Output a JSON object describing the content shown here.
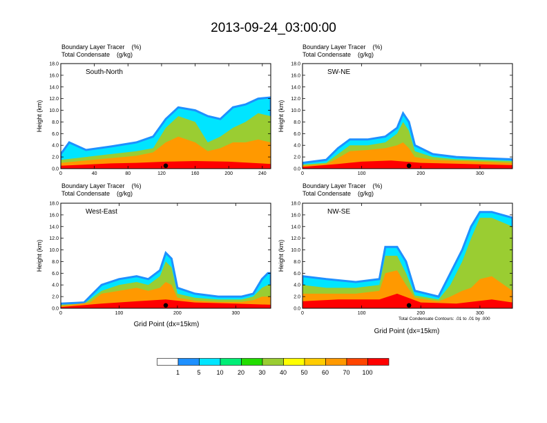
{
  "title": "2013-09-24_03:00:00",
  "panel_header": {
    "line1": "Boundary Layer Tracer    (%)",
    "line2": "Total Condensate    (g/kg)"
  },
  "xlabel": "Grid Point (dx=15km)",
  "contour_note": "Total Condensate Contours: .01 to .01 by .000",
  "colorbar": {
    "labels": [
      "1",
      "5",
      "10",
      "20",
      "30",
      "40",
      "50",
      "60",
      "70",
      "100"
    ],
    "colors": [
      "#ffffff",
      "#1e90ff",
      "#00e5ff",
      "#00ee76",
      "#22dd00",
      "#9acd32",
      "#ffff00",
      "#ffcc00",
      "#ff9900",
      "#ff4500",
      "#ff0000"
    ]
  },
  "chart_data": [
    {
      "type": "area",
      "panel_label": "South-North",
      "ylabel": "Height (km)",
      "ylim": [
        0,
        18
      ],
      "yticks": [
        "0.0",
        "2.0",
        "4.0",
        "6.0",
        "8.0",
        "10.0",
        "12.0",
        "14.0",
        "16.0",
        "18.0"
      ],
      "xlim": [
        0,
        250
      ],
      "xticks": [
        0,
        40,
        80,
        120,
        160,
        200,
        240
      ],
      "marker_x": 125,
      "layers": [
        {
          "level": "1",
          "top": [
            [
              0,
              2.5
            ],
            [
              10,
              4.5
            ],
            [
              30,
              3.2
            ],
            [
              60,
              3.8
            ],
            [
              90,
              4.5
            ],
            [
              110,
              5.5
            ],
            [
              125,
              8.5
            ],
            [
              140,
              10.5
            ],
            [
              160,
              10.0
            ],
            [
              175,
              9.0
            ],
            [
              190,
              8.5
            ],
            [
              205,
              10.5
            ],
            [
              220,
              11.0
            ],
            [
              235,
              12.0
            ],
            [
              250,
              12.2
            ]
          ]
        },
        {
          "level": "20",
          "top": [
            [
              0,
              1.5
            ],
            [
              30,
              2.0
            ],
            [
              60,
              2.5
            ],
            [
              90,
              3.0
            ],
            [
              110,
              3.5
            ],
            [
              125,
              7.0
            ],
            [
              140,
              9.0
            ],
            [
              160,
              8.0
            ],
            [
              175,
              4.5
            ],
            [
              190,
              5.5
            ],
            [
              205,
              7.0
            ],
            [
              220,
              8.0
            ],
            [
              235,
              9.5
            ],
            [
              250,
              9.0
            ]
          ]
        },
        {
          "level": "60",
          "top": [
            [
              0,
              1.0
            ],
            [
              30,
              1.4
            ],
            [
              60,
              1.8
            ],
            [
              90,
              2.2
            ],
            [
              110,
              2.8
            ],
            [
              125,
              4.5
            ],
            [
              140,
              5.5
            ],
            [
              160,
              4.5
            ],
            [
              175,
              3.0
            ],
            [
              190,
              3.5
            ],
            [
              205,
              4.5
            ],
            [
              220,
              4.5
            ],
            [
              235,
              5.0
            ],
            [
              250,
              4.5
            ]
          ]
        },
        {
          "level": "100",
          "top": [
            [
              0,
              0.5
            ],
            [
              30,
              0.7
            ],
            [
              60,
              0.9
            ],
            [
              90,
              1.0
            ],
            [
              125,
              1.2
            ],
            [
              160,
              1.3
            ],
            [
              200,
              1.2
            ],
            [
              250,
              0.8
            ]
          ]
        }
      ]
    },
    {
      "type": "area",
      "panel_label": "SW-NE",
      "ylabel": "Height (km)",
      "ylim": [
        0,
        18
      ],
      "yticks": [
        "0.0",
        "2.0",
        "4.0",
        "6.0",
        "8.0",
        "10.0",
        "12.0",
        "14.0",
        "16.0",
        "18.0"
      ],
      "xlim": [
        0,
        355
      ],
      "xticks": [
        0,
        100,
        200,
        300
      ],
      "marker_x": 180,
      "layers": [
        {
          "level": "1",
          "top": [
            [
              0,
              1.0
            ],
            [
              40,
              1.5
            ],
            [
              60,
              3.5
            ],
            [
              80,
              5.0
            ],
            [
              110,
              5.0
            ],
            [
              140,
              5.5
            ],
            [
              160,
              7.0
            ],
            [
              170,
              9.5
            ],
            [
              180,
              8.0
            ],
            [
              190,
              4.0
            ],
            [
              220,
              2.5
            ],
            [
              260,
              2.0
            ],
            [
              300,
              1.8
            ],
            [
              355,
              1.6
            ]
          ]
        },
        {
          "level": "20",
          "top": [
            [
              0,
              0.7
            ],
            [
              40,
              1.0
            ],
            [
              60,
              2.5
            ],
            [
              80,
              4.0
            ],
            [
              110,
              4.0
            ],
            [
              140,
              4.5
            ],
            [
              160,
              6.0
            ],
            [
              170,
              8.0
            ],
            [
              180,
              6.5
            ],
            [
              190,
              3.0
            ],
            [
              220,
              2.0
            ],
            [
              260,
              1.6
            ],
            [
              355,
              1.3
            ]
          ]
        },
        {
          "level": "60",
          "top": [
            [
              0,
              0.5
            ],
            [
              40,
              0.8
            ],
            [
              60,
              1.8
            ],
            [
              80,
              3.0
            ],
            [
              110,
              3.2
            ],
            [
              140,
              3.5
            ],
            [
              160,
              4.0
            ],
            [
              170,
              4.5
            ],
            [
              180,
              3.5
            ],
            [
              190,
              2.0
            ],
            [
              220,
              1.5
            ],
            [
              355,
              1.0
            ]
          ]
        },
        {
          "level": "100",
          "top": [
            [
              0,
              0.3
            ],
            [
              60,
              0.8
            ],
            [
              100,
              1.2
            ],
            [
              150,
              1.4
            ],
            [
              200,
              1.0
            ],
            [
              355,
              0.6
            ]
          ]
        }
      ]
    },
    {
      "type": "area",
      "panel_label": "West-East",
      "ylabel": "Height (km)",
      "ylim": [
        0,
        18
      ],
      "yticks": [
        "0.0",
        "2.0",
        "4.0",
        "6.0",
        "8.0",
        "10.0",
        "12.0",
        "14.0",
        "16.0",
        "18.0"
      ],
      "xlim": [
        0,
        360
      ],
      "xticks": [
        0,
        100,
        200,
        300
      ],
      "marker_x": 180,
      "layers": [
        {
          "level": "1",
          "top": [
            [
              0,
              0.8
            ],
            [
              40,
              1.0
            ],
            [
              50,
              2.0
            ],
            [
              70,
              4.0
            ],
            [
              100,
              5.0
            ],
            [
              130,
              5.5
            ],
            [
              150,
              5.0
            ],
            [
              170,
              6.5
            ],
            [
              180,
              9.5
            ],
            [
              190,
              8.5
            ],
            [
              200,
              3.5
            ],
            [
              230,
              2.5
            ],
            [
              270,
              2.0
            ],
            [
              310,
              2.0
            ],
            [
              330,
              2.5
            ],
            [
              345,
              5.0
            ],
            [
              355,
              6.0
            ],
            [
              360,
              6.0
            ]
          ]
        },
        {
          "level": "20",
          "top": [
            [
              0,
              0.6
            ],
            [
              40,
              0.8
            ],
            [
              50,
              1.5
            ],
            [
              70,
              3.0
            ],
            [
              100,
              4.0
            ],
            [
              130,
              4.5
            ],
            [
              150,
              4.0
            ],
            [
              170,
              5.5
            ],
            [
              180,
              8.0
            ],
            [
              190,
              7.0
            ],
            [
              200,
              2.5
            ],
            [
              230,
              1.8
            ],
            [
              270,
              1.5
            ],
            [
              310,
              1.5
            ],
            [
              330,
              2.0
            ],
            [
              345,
              3.5
            ],
            [
              355,
              4.0
            ],
            [
              360,
              4.0
            ]
          ]
        },
        {
          "level": "60",
          "top": [
            [
              0,
              0.4
            ],
            [
              50,
              1.0
            ],
            [
              70,
              2.5
            ],
            [
              100,
              3.0
            ],
            [
              130,
              3.5
            ],
            [
              150,
              3.0
            ],
            [
              170,
              3.5
            ],
            [
              180,
              4.5
            ],
            [
              190,
              4.0
            ],
            [
              200,
              1.8
            ],
            [
              230,
              1.3
            ],
            [
              270,
              1.1
            ],
            [
              310,
              1.1
            ],
            [
              330,
              1.4
            ],
            [
              345,
              2.0
            ],
            [
              360,
              2.0
            ]
          ]
        },
        {
          "level": "100",
          "top": [
            [
              0,
              0.2
            ],
            [
              70,
              0.8
            ],
            [
              130,
              1.2
            ],
            [
              180,
              1.5
            ],
            [
              230,
              1.0
            ],
            [
              300,
              0.8
            ],
            [
              360,
              0.6
            ]
          ]
        }
      ]
    },
    {
      "type": "area",
      "panel_label": "NW-SE",
      "ylabel": "Height (km)",
      "ylim": [
        0,
        18
      ],
      "yticks": [
        "0.0",
        "2.0",
        "4.0",
        "6.0",
        "8.0",
        "10.0",
        "12.0",
        "14.0",
        "16.0",
        "18.0"
      ],
      "xlim": [
        0,
        355
      ],
      "xticks": [
        0,
        100,
        200,
        300
      ],
      "marker_x": 180,
      "layers": [
        {
          "level": "1",
          "top": [
            [
              0,
              5.5
            ],
            [
              40,
              5.0
            ],
            [
              90,
              4.5
            ],
            [
              130,
              5.0
            ],
            [
              140,
              10.5
            ],
            [
              160,
              10.5
            ],
            [
              175,
              8.0
            ],
            [
              190,
              3.0
            ],
            [
              230,
              2.0
            ],
            [
              250,
              6.0
            ],
            [
              270,
              10.0
            ],
            [
              285,
              14.0
            ],
            [
              300,
              16.5
            ],
            [
              320,
              16.5
            ],
            [
              355,
              15.5
            ]
          ]
        },
        {
          "level": "20",
          "top": [
            [
              0,
              4.0
            ],
            [
              40,
              3.5
            ],
            [
              90,
              3.5
            ],
            [
              130,
              4.0
            ],
            [
              140,
              9.0
            ],
            [
              160,
              9.0
            ],
            [
              175,
              6.0
            ],
            [
              190,
              2.2
            ],
            [
              230,
              1.5
            ],
            [
              250,
              4.0
            ],
            [
              270,
              8.0
            ],
            [
              285,
              12.0
            ],
            [
              300,
              15.5
            ],
            [
              320,
              15.5
            ],
            [
              355,
              14.0
            ]
          ]
        },
        {
          "level": "60",
          "top": [
            [
              0,
              2.5
            ],
            [
              40,
              2.5
            ],
            [
              90,
              2.5
            ],
            [
              130,
              3.0
            ],
            [
              140,
              6.0
            ],
            [
              160,
              6.5
            ],
            [
              175,
              4.0
            ],
            [
              190,
              1.8
            ],
            [
              230,
              1.2
            ],
            [
              250,
              2.0
            ],
            [
              270,
              3.0
            ],
            [
              285,
              3.5
            ],
            [
              300,
              5.0
            ],
            [
              320,
              5.5
            ],
            [
              355,
              3.0
            ]
          ]
        },
        {
          "level": "100",
          "top": [
            [
              0,
              1.2
            ],
            [
              60,
              1.5
            ],
            [
              130,
              1.5
            ],
            [
              160,
              2.5
            ],
            [
              200,
              1.0
            ],
            [
              260,
              0.8
            ],
            [
              320,
              1.5
            ],
            [
              355,
              1.0
            ]
          ]
        }
      ]
    }
  ]
}
